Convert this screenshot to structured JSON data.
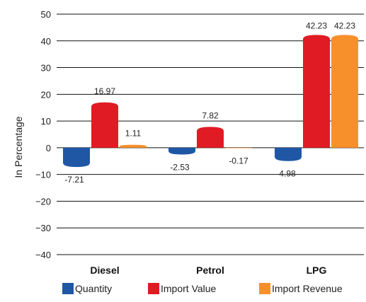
{
  "chart_data": {
    "type": "bar",
    "categories": [
      "Diesel",
      "Petrol",
      "LPG"
    ],
    "series": [
      {
        "name": "Quantity",
        "values": [
          -7.21,
          -2.53,
          -4.98
        ],
        "color": "#1f57a5"
      },
      {
        "name": "Import Value",
        "values": [
          16.97,
          7.82,
          42.23
        ],
        "color": "#e01b24"
      },
      {
        "name": "Import Revenue",
        "values": [
          1.11,
          -0.17,
          42.23
        ],
        "color": "#f7902a"
      }
    ],
    "data_labels": [
      [
        "-7.21",
        "16.97",
        "1.11"
      ],
      [
        "-2.53",
        "7.82",
        "-0.17"
      ],
      [
        "-4.98",
        "42.23",
        "42.23"
      ]
    ],
    "ylabel": "In Percentage",
    "xlabel": "",
    "title": "",
    "ylim": [
      -40,
      50
    ],
    "yticks": [
      50,
      40,
      30,
      20,
      10,
      0,
      -10,
      -20,
      -30,
      -40
    ],
    "ytick_labels": [
      "50",
      "40",
      "30",
      "20",
      "10",
      "0",
      "−10",
      "−20",
      "−30",
      "−40"
    ],
    "grid": true,
    "legend_position": "bottom"
  }
}
